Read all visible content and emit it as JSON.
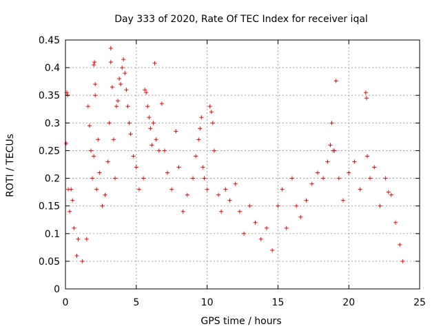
{
  "chart_data": {
    "type": "scatter",
    "title": "Day 333 of 2020, Rate Of TEC Index for receiver iqal",
    "xlabel": "GPS time / hours",
    "ylabel": "ROTI / TECUs",
    "xlim": [
      0,
      25
    ],
    "ylim": [
      0,
      0.45
    ],
    "xticks": [
      0,
      5,
      10,
      15,
      20,
      25
    ],
    "xtick_labels": [
      "0",
      "5",
      "10",
      "15",
      "20",
      "25"
    ],
    "yticks": [
      0,
      0.05,
      0.1,
      0.15,
      0.2,
      0.25,
      0.3,
      0.35,
      0.4,
      0.45
    ],
    "ytick_labels": [
      "0",
      "0.05",
      "0.1",
      "0.15",
      "0.2",
      "0.25",
      "0.3",
      "0.35",
      "0.4",
      "0.45"
    ],
    "grid": true,
    "marker": "+",
    "color": "#ff0000",
    "points": [
      [
        0.05,
        0.263
      ],
      [
        0.1,
        0.355
      ],
      [
        0.15,
        0.35
      ],
      [
        0.2,
        0.18
      ],
      [
        0.3,
        0.14
      ],
      [
        0.4,
        0.18
      ],
      [
        0.5,
        0.16
      ],
      [
        0.6,
        0.11
      ],
      [
        0.8,
        0.06
      ],
      [
        0.9,
        0.09
      ],
      [
        1.2,
        0.05
      ],
      [
        1.5,
        0.09
      ],
      [
        1.6,
        0.33
      ],
      [
        1.7,
        0.295
      ],
      [
        1.8,
        0.25
      ],
      [
        1.9,
        0.2
      ],
      [
        2.0,
        0.24
      ],
      [
        2.0,
        0.405
      ],
      [
        2.05,
        0.41
      ],
      [
        2.1,
        0.37
      ],
      [
        2.1,
        0.35
      ],
      [
        2.2,
        0.18
      ],
      [
        2.3,
        0.27
      ],
      [
        2.4,
        0.21
      ],
      [
        2.6,
        0.15
      ],
      [
        2.8,
        0.17
      ],
      [
        3.0,
        0.23
      ],
      [
        3.1,
        0.3
      ],
      [
        3.2,
        0.435
      ],
      [
        3.2,
        0.41
      ],
      [
        3.3,
        0.365
      ],
      [
        3.4,
        0.27
      ],
      [
        3.5,
        0.2
      ],
      [
        3.6,
        0.33
      ],
      [
        3.7,
        0.34
      ],
      [
        3.8,
        0.38
      ],
      [
        3.9,
        0.37
      ],
      [
        4.0,
        0.4
      ],
      [
        4.1,
        0.415
      ],
      [
        4.2,
        0.39
      ],
      [
        4.3,
        0.36
      ],
      [
        4.4,
        0.33
      ],
      [
        4.5,
        0.3
      ],
      [
        4.6,
        0.28
      ],
      [
        4.8,
        0.24
      ],
      [
        5.0,
        0.22
      ],
      [
        5.2,
        0.18
      ],
      [
        5.5,
        0.2
      ],
      [
        5.6,
        0.36
      ],
      [
        5.7,
        0.355
      ],
      [
        5.8,
        0.33
      ],
      [
        5.9,
        0.31
      ],
      [
        6.0,
        0.29
      ],
      [
        6.1,
        0.26
      ],
      [
        6.2,
        0.3
      ],
      [
        6.3,
        0.408
      ],
      [
        6.4,
        0.27
      ],
      [
        6.6,
        0.25
      ],
      [
        6.8,
        0.335
      ],
      [
        7.0,
        0.25
      ],
      [
        7.2,
        0.21
      ],
      [
        7.5,
        0.18
      ],
      [
        7.8,
        0.285
      ],
      [
        8.0,
        0.22
      ],
      [
        8.3,
        0.14
      ],
      [
        8.6,
        0.17
      ],
      [
        9.0,
        0.2
      ],
      [
        9.2,
        0.24
      ],
      [
        9.4,
        0.27
      ],
      [
        9.5,
        0.29
      ],
      [
        9.6,
        0.31
      ],
      [
        9.7,
        0.22
      ],
      [
        9.8,
        0.2
      ],
      [
        10.0,
        0.18
      ],
      [
        10.2,
        0.33
      ],
      [
        10.3,
        0.32
      ],
      [
        10.4,
        0.3
      ],
      [
        10.5,
        0.25
      ],
      [
        10.8,
        0.17
      ],
      [
        11.0,
        0.14
      ],
      [
        11.3,
        0.18
      ],
      [
        11.6,
        0.16
      ],
      [
        12.0,
        0.19
      ],
      [
        12.3,
        0.14
      ],
      [
        12.6,
        0.1
      ],
      [
        13.0,
        0.15
      ],
      [
        13.4,
        0.12
      ],
      [
        13.8,
        0.09
      ],
      [
        14.2,
        0.11
      ],
      [
        14.6,
        0.07
      ],
      [
        15.0,
        0.15
      ],
      [
        15.3,
        0.18
      ],
      [
        15.6,
        0.11
      ],
      [
        16.0,
        0.2
      ],
      [
        16.3,
        0.15
      ],
      [
        16.6,
        0.13
      ],
      [
        17.0,
        0.16
      ],
      [
        17.4,
        0.19
      ],
      [
        17.8,
        0.21
      ],
      [
        18.2,
        0.2
      ],
      [
        18.5,
        0.23
      ],
      [
        18.7,
        0.26
      ],
      [
        18.8,
        0.3
      ],
      [
        18.9,
        0.25
      ],
      [
        19.0,
        0.25
      ],
      [
        19.1,
        0.376
      ],
      [
        19.3,
        0.2
      ],
      [
        19.6,
        0.16
      ],
      [
        20.0,
        0.21
      ],
      [
        20.4,
        0.23
      ],
      [
        20.8,
        0.18
      ],
      [
        21.2,
        0.355
      ],
      [
        21.25,
        0.345
      ],
      [
        21.3,
        0.24
      ],
      [
        21.5,
        0.2
      ],
      [
        21.8,
        0.22
      ],
      [
        22.2,
        0.15
      ],
      [
        22.6,
        0.2
      ],
      [
        22.8,
        0.175
      ],
      [
        23.0,
        0.17
      ],
      [
        23.3,
        0.12
      ],
      [
        23.6,
        0.08
      ],
      [
        23.8,
        0.05
      ]
    ]
  }
}
